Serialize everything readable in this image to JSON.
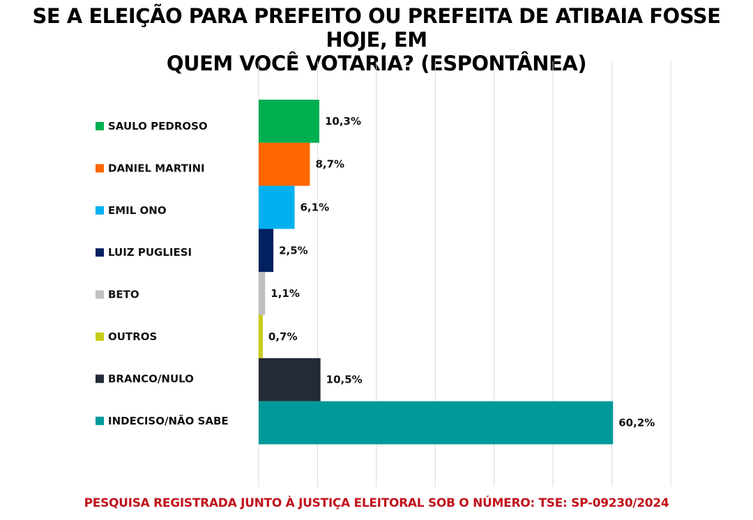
{
  "header": {
    "title_line1": "SE A ELEIÇÃO PARA PREFEITO OU PREFEITA DE ATIBAIA FOSSE HOJE, EM",
    "title_line2": "QUEM VOCÊ VOTARIA? (ESPONTÂNEA)"
  },
  "footer": {
    "text": "PESQUISA REGISTRADA JUNTO À JUSTIÇA ELEITORAL SOB O NÚMERO: TSE: SP-09230/2024"
  },
  "chart_data": {
    "type": "bar",
    "orientation": "horizontal",
    "title": "SE A ELEIÇÃO PARA PREFEITO OU PREFEITA DE ATIBAIA FOSSE HOJE, EM QUEM VOCÊ VOTARIA? (ESPONTÂNEA)",
    "xlabel": "",
    "ylabel": "",
    "xlim": [
      0,
      70
    ],
    "grid": true,
    "legend": "left",
    "categories": [
      "SAULO PEDROSO",
      "DANIEL MARTINI",
      "EMIL ONO",
      "LUIZ PUGLIESI",
      "BETO",
      "OUTROS",
      "BRANCO/NULO",
      "INDECISO/NÃO SABE"
    ],
    "values": [
      10.3,
      8.7,
      6.1,
      2.5,
      1.1,
      0.7,
      10.5,
      60.2
    ],
    "value_labels": [
      "10,3%",
      "8,7%",
      "6,1%",
      "2,5%",
      "1,1%",
      "0,7%",
      "10,5%",
      "60,2%"
    ],
    "colors": [
      "#00b050",
      "#ff6600",
      "#00b0f0",
      "#002060",
      "#bfbfbf",
      "#c9cc1b",
      "#232b37",
      "#009999"
    ]
  }
}
